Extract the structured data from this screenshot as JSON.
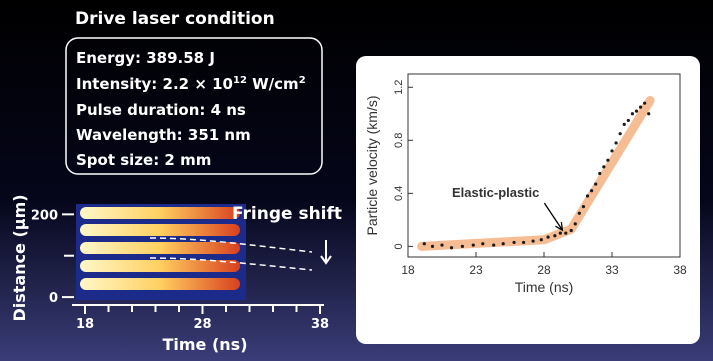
{
  "header": {
    "title": "Drive laser condition"
  },
  "conditions": {
    "energy": "Energy: 389.58 J",
    "intensity": {
      "base": "Intensity: 2.2 × 10",
      "exp": "12",
      "unit": " W/cm",
      "unit_exp": "2"
    },
    "pulse": "Pulse duration: 4 ns",
    "wavelength": "Wavelength: 351 nm",
    "spot": "Spot size: 2 mm"
  },
  "chart_data": [
    {
      "type": "image",
      "x_label": "Time (ns)",
      "y_label": "Distance (μm)",
      "annotation": "Fringe shift",
      "xlim": [
        18,
        38
      ],
      "xticks": [
        18,
        28,
        38
      ],
      "ylim": [
        -7,
        225
      ],
      "yticks": [
        0,
        200
      ]
    },
    {
      "type": "scatter",
      "x_label": "Time (ns)",
      "y_label": "Particle velocity (km/s)",
      "annotation": "Elastic-plastic",
      "annotation_point": [
        29.5,
        0.1
      ],
      "xlim": [
        18,
        38
      ],
      "xticks": [
        18,
        23,
        28,
        33,
        38
      ],
      "ylim": [
        -0.08,
        1.3
      ],
      "yticks": [
        0,
        0.4,
        0.8,
        1.2
      ],
      "color": "#1a1a1a",
      "x": [
        19.2,
        19.8,
        20.5,
        21.2,
        22,
        22.8,
        23.5,
        24.3,
        25,
        25.8,
        26.5,
        27.2,
        27.8,
        28.3,
        28.8,
        29.2,
        29.6,
        30,
        30.3,
        30.6,
        30.9,
        31.2,
        31.5,
        31.8,
        32.1,
        32.4,
        32.7,
        33,
        33.3,
        33.6,
        33.9,
        34.2,
        34.5,
        34.8,
        35.1,
        35.4,
        35.7
      ],
      "values": [
        0.02,
        0,
        0.01,
        -0.01,
        0,
        0.01,
        0.02,
        0.01,
        0.02,
        0.03,
        0.03,
        0.04,
        0.05,
        0.07,
        0.08,
        0.1,
        0.1,
        0.12,
        0.17,
        0.25,
        0.3,
        0.38,
        0.42,
        0.47,
        0.55,
        0.6,
        0.65,
        0.72,
        0.78,
        0.85,
        0.92,
        0.95,
        1.0,
        1.02,
        1.05,
        1.08,
        1.0
      ],
      "fit": {
        "color": "#f4b183",
        "x": [
          19,
          28,
          30,
          35.8
        ],
        "values": [
          0,
          0.05,
          0.13,
          1.1
        ]
      }
    }
  ]
}
